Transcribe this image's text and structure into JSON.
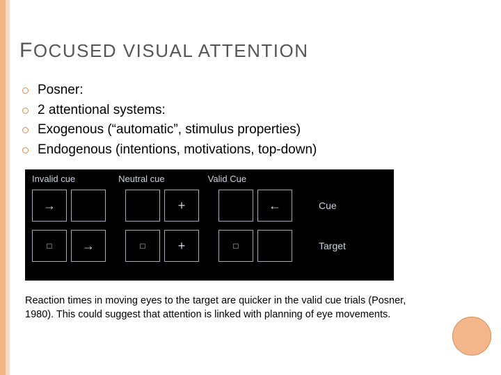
{
  "title": {
    "first_cap": "F",
    "rest": "OCUSED VISUAL ATTENTION"
  },
  "bullets": [
    "Posner:",
    "2 attentional systems:",
    "Exogenous (“automatic”, stimulus properties)",
    "Endogenous (intentions, motivations, top-down)"
  ],
  "diagram": {
    "background_color": "#000000",
    "text_color": "#cfd3e0",
    "border_color": "#aaaabb",
    "columns": [
      "Invalid cue",
      "Neutral cue",
      "Valid Cue"
    ],
    "row_labels": [
      "Cue",
      "Target"
    ],
    "cells": {
      "cue": {
        "invalid": [
          "→",
          ""
        ],
        "neutral": [
          "",
          "+"
        ],
        "valid": [
          "",
          "←"
        ]
      },
      "target": {
        "invalid": [
          "□",
          "→"
        ],
        "neutral": [
          "□",
          "+"
        ],
        "valid": [
          "□",
          ""
        ]
      }
    }
  },
  "caption": "Reaction times in moving eyes to the target are quicker in the valid cue trials (Posner, 1980). This could suggest that attention is linked with planning of eye movements.",
  "colors": {
    "accent_stripe_outer": "#f2b487",
    "accent_stripe_inner": "#f9d9c1",
    "bullet_ring": "#d98c56",
    "title_color": "#555555",
    "circle_fill": "#f4b78b",
    "circle_border": "#d98c56"
  }
}
